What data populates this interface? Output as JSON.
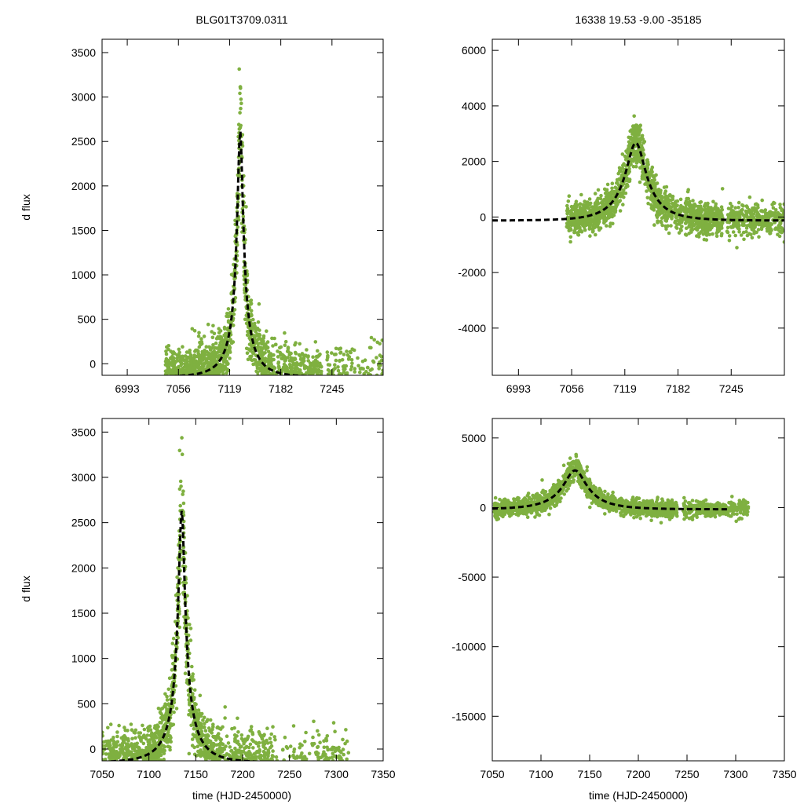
{
  "colors": {
    "points": "#7fb040",
    "fit": "#000000",
    "axis": "#000000",
    "background": "#ffffff"
  },
  "chart_data": [
    {
      "id": "top-left",
      "type": "scatter",
      "title": "BLG01T3709.0311",
      "xlabel": "",
      "ylabel": "d flux",
      "xlim": [
        6962,
        7308
      ],
      "ylim": [
        -130,
        3650
      ],
      "xticks": [
        6993,
        7056,
        7119,
        7182,
        7245
      ],
      "yticks": [
        0,
        500,
        1000,
        1500,
        2000,
        2500,
        3000,
        3500
      ],
      "model": {
        "t0": 7132,
        "peak": 2780,
        "baseline": -150,
        "u0": 0.1,
        "tE": 34,
        "sigma_frac": 0.09,
        "noise_floor": 160
      },
      "point_groups": [
        {
          "start": 7040,
          "end": 7172,
          "n": 1300
        },
        {
          "start": 7172,
          "end": 7190,
          "n": 90
        },
        {
          "start": 7190,
          "end": 7232,
          "n": 320
        },
        {
          "start": 7238,
          "end": 7308,
          "n": 220
        }
      ],
      "fit_xlim": [
        6962,
        7308
      ],
      "series": [
        {
          "name": "data",
          "style": "green points"
        },
        {
          "name": "fit",
          "style": "black dashed line"
        }
      ]
    },
    {
      "id": "top-right",
      "type": "scatter",
      "title": "16338  19.53  -9.00  -35185",
      "xlabel": "",
      "ylabel": "",
      "xlim": [
        6962,
        7308
      ],
      "ylim": [
        -5700,
        6400
      ],
      "xticks": [
        6993,
        7056,
        7119,
        7182,
        7245
      ],
      "yticks": [
        -4000,
        -2000,
        0,
        2000,
        4000,
        6000
      ],
      "model": {
        "t0": 7132,
        "peak": 2800,
        "baseline": -130,
        "u0": 0.3,
        "tE": 40,
        "sigma_frac": 0.07,
        "noise_floor": 280
      },
      "point_groups": [
        {
          "start": 7050,
          "end": 7172,
          "n": 1100
        },
        {
          "start": 7172,
          "end": 7188,
          "n": 80
        },
        {
          "start": 7190,
          "end": 7235,
          "n": 420
        },
        {
          "start": 7240,
          "end": 7308,
          "n": 320
        }
      ],
      "fit_xlim": [
        6962,
        7308
      ],
      "series": [
        {
          "name": "data",
          "style": "green points"
        },
        {
          "name": "fit",
          "style": "black dashed line"
        }
      ]
    },
    {
      "id": "bottom-left",
      "type": "scatter",
      "title": "",
      "xlabel": "time (HJD-2450000)",
      "ylabel": "d flux",
      "xlim": [
        7050,
        7350
      ],
      "ylim": [
        -130,
        3650
      ],
      "xticks": [
        7050,
        7100,
        7150,
        7200,
        7250,
        7300,
        7350
      ],
      "yticks": [
        0,
        500,
        1000,
        1500,
        2000,
        2500,
        3000,
        3500
      ],
      "model": {
        "t0": 7135,
        "peak": 2780,
        "baseline": -150,
        "u0": 0.1,
        "tE": 34,
        "sigma_frac": 0.09,
        "noise_floor": 160
      },
      "point_groups": [
        {
          "start": 7050,
          "end": 7177,
          "n": 1300
        },
        {
          "start": 7177,
          "end": 7192,
          "n": 90
        },
        {
          "start": 7192,
          "end": 7237,
          "n": 320
        },
        {
          "start": 7242,
          "end": 7313,
          "n": 220
        }
      ],
      "fit_xlim": [
        7050,
        7290
      ],
      "series": [
        {
          "name": "data",
          "style": "green points"
        },
        {
          "name": "fit",
          "style": "black dashed line"
        }
      ]
    },
    {
      "id": "bottom-right",
      "type": "scatter",
      "title": "",
      "xlabel": "time (HJD-2450000)",
      "ylabel": "",
      "xlim": [
        7050,
        7350
      ],
      "ylim": [
        -18200,
        6400
      ],
      "xticks": [
        7050,
        7100,
        7150,
        7200,
        7250,
        7300,
        7350
      ],
      "yticks": [
        -15000,
        -10000,
        -5000,
        0,
        5000
      ],
      "model": {
        "t0": 7135,
        "peak": 2800,
        "baseline": -130,
        "u0": 0.3,
        "tE": 40,
        "sigma_frac": 0.07,
        "noise_floor": 280
      },
      "point_groups": [
        {
          "start": 7052,
          "end": 7178,
          "n": 1100
        },
        {
          "start": 7178,
          "end": 7192,
          "n": 80
        },
        {
          "start": 7192,
          "end": 7240,
          "n": 420
        },
        {
          "start": 7246,
          "end": 7313,
          "n": 320
        }
      ],
      "fit_xlim": [
        7050,
        7292
      ],
      "series": [
        {
          "name": "data",
          "style": "green points"
        },
        {
          "name": "fit",
          "style": "black dashed line"
        }
      ]
    }
  ]
}
